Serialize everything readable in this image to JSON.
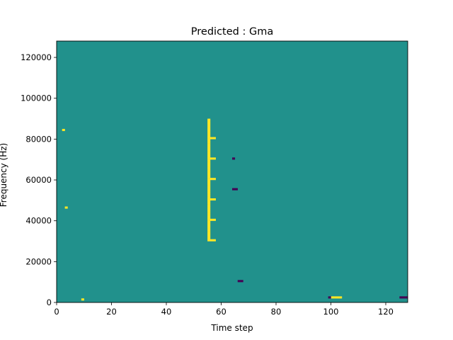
{
  "chart_data": {
    "type": "heatmap",
    "title": "Predicted : Gma",
    "xlabel": "Time step",
    "ylabel": "Frequency (Hz)",
    "xlim": [
      0,
      128
    ],
    "ylim": [
      0,
      128000
    ],
    "x_ticks": [
      0,
      20,
      40,
      60,
      80,
      100,
      120
    ],
    "x_tick_labels": [
      "0",
      "20",
      "40",
      "60",
      "80",
      "100",
      "120"
    ],
    "y_ticks": [
      0,
      20000,
      40000,
      60000,
      80000,
      100000,
      120000
    ],
    "y_tick_labels": [
      "0",
      "20000",
      "40000",
      "60000",
      "80000",
      "100000",
      "120000"
    ],
    "grid": false,
    "colormap": [
      "#440154",
      "#21918c",
      "#fde725"
    ],
    "background_value": 0,
    "value_levels": [
      -1,
      0,
      1
    ],
    "cells_note": "each cell spans 1 time step x 1000 Hz; value -1 = dark purple, +1 = yellow, unlisted cells = 0 (teal)",
    "cells": [
      [
        55,
        30000,
        1
      ],
      [
        55,
        31000,
        1
      ],
      [
        55,
        32000,
        1
      ],
      [
        55,
        33000,
        1
      ],
      [
        55,
        34000,
        1
      ],
      [
        55,
        35000,
        1
      ],
      [
        55,
        36000,
        1
      ],
      [
        55,
        37000,
        1
      ],
      [
        55,
        38000,
        1
      ],
      [
        55,
        39000,
        1
      ],
      [
        55,
        40000,
        1
      ],
      [
        55,
        41000,
        1
      ],
      [
        55,
        42000,
        1
      ],
      [
        55,
        43000,
        1
      ],
      [
        55,
        44000,
        1
      ],
      [
        55,
        45000,
        1
      ],
      [
        55,
        46000,
        1
      ],
      [
        55,
        47000,
        1
      ],
      [
        55,
        48000,
        1
      ],
      [
        55,
        49000,
        1
      ],
      [
        55,
        50000,
        1
      ],
      [
        55,
        51000,
        1
      ],
      [
        55,
        52000,
        1
      ],
      [
        55,
        53000,
        1
      ],
      [
        55,
        54000,
        1
      ],
      [
        55,
        55000,
        1
      ],
      [
        55,
        56000,
        1
      ],
      [
        55,
        57000,
        1
      ],
      [
        55,
        58000,
        1
      ],
      [
        55,
        59000,
        1
      ],
      [
        55,
        60000,
        1
      ],
      [
        55,
        61000,
        1
      ],
      [
        55,
        62000,
        1
      ],
      [
        55,
        63000,
        1
      ],
      [
        55,
        64000,
        1
      ],
      [
        55,
        65000,
        1
      ],
      [
        55,
        66000,
        1
      ],
      [
        55,
        67000,
        1
      ],
      [
        55,
        68000,
        1
      ],
      [
        55,
        69000,
        1
      ],
      [
        55,
        70000,
        1
      ],
      [
        55,
        71000,
        1
      ],
      [
        55,
        72000,
        1
      ],
      [
        55,
        73000,
        1
      ],
      [
        55,
        74000,
        1
      ],
      [
        55,
        75000,
        1
      ],
      [
        55,
        76000,
        1
      ],
      [
        55,
        77000,
        1
      ],
      [
        55,
        78000,
        1
      ],
      [
        55,
        79000,
        1
      ],
      [
        55,
        80000,
        1
      ],
      [
        55,
        81000,
        1
      ],
      [
        55,
        82000,
        1
      ],
      [
        55,
        83000,
        1
      ],
      [
        55,
        84000,
        1
      ],
      [
        55,
        85000,
        1
      ],
      [
        55,
        86000,
        1
      ],
      [
        55,
        87000,
        1
      ],
      [
        55,
        88000,
        1
      ],
      [
        55,
        89000,
        1
      ],
      [
        56,
        30000,
        1
      ],
      [
        56,
        40000,
        1
      ],
      [
        56,
        50000,
        1
      ],
      [
        56,
        60000,
        1
      ],
      [
        56,
        70000,
        1
      ],
      [
        56,
        80000,
        1
      ],
      [
        57,
        30000,
        1
      ],
      [
        57,
        40000,
        1
      ],
      [
        57,
        50000,
        1
      ],
      [
        57,
        60000,
        1
      ],
      [
        57,
        70000,
        1
      ],
      [
        57,
        80000,
        1
      ],
      [
        2,
        84000,
        1
      ],
      [
        3,
        46000,
        1
      ],
      [
        9,
        1000,
        1
      ],
      [
        100,
        2000,
        1
      ],
      [
        101,
        2000,
        1
      ],
      [
        102,
        2000,
        1
      ],
      [
        103,
        2000,
        1
      ],
      [
        66,
        10000,
        -1
      ],
      [
        67,
        10000,
        -1
      ],
      [
        64,
        55000,
        -1
      ],
      [
        65,
        55000,
        -1
      ],
      [
        64,
        70000,
        -1
      ],
      [
        99,
        2000,
        -1
      ],
      [
        125,
        2000,
        -1
      ],
      [
        126,
        2000,
        -1
      ],
      [
        127,
        2000,
        -1
      ]
    ]
  }
}
